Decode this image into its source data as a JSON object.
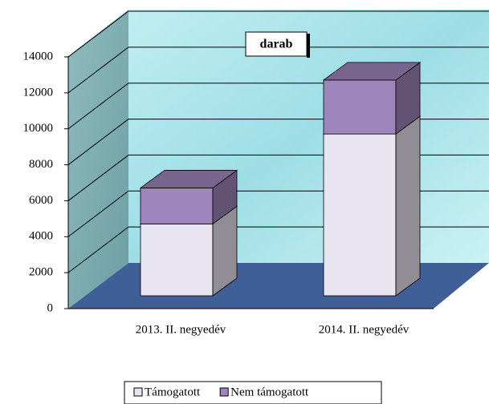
{
  "chart_data": {
    "type": "bar3d_stacked",
    "title": "darab",
    "categories": [
      "2013. II. negyedév",
      "2014. II. negyedév"
    ],
    "series": [
      {
        "name": "Támogatott",
        "color": "#e8e4f0",
        "values": [
          4000,
          9000
        ]
      },
      {
        "name": "Nem támogatott",
        "color": "#9e86bc",
        "values": [
          2000,
          3000
        ]
      }
    ],
    "ylim": [
      0,
      14000
    ],
    "yticks": [
      0,
      2000,
      4000,
      6000,
      8000,
      10000,
      12000,
      14000
    ],
    "grid": true
  }
}
